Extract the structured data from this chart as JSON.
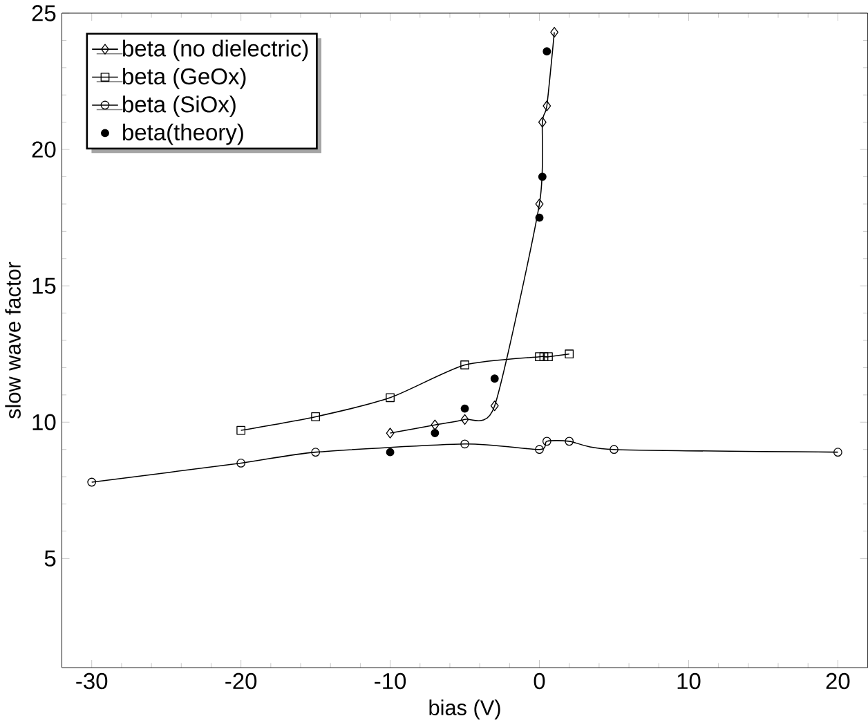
{
  "chart_data": {
    "type": "line",
    "xlabel": "bias (V)",
    "ylabel": "slow wave factor",
    "xlim": [
      -32,
      22
    ],
    "ylim": [
      1,
      25
    ],
    "xticks": [
      -30,
      -20,
      -10,
      0,
      10,
      20
    ],
    "yticks": [
      5,
      10,
      15,
      20,
      25
    ],
    "legend": "top left",
    "grid": false,
    "series": [
      {
        "name": "beta (no dielectric)",
        "color": "#000000",
        "marker": "diamond",
        "x": [
          -10,
          -7,
          -5,
          -3,
          0,
          0.2,
          0.5,
          1
        ],
        "values": [
          9.6,
          9.9,
          10.1,
          10.6,
          18.0,
          21.0,
          21.6,
          24.3
        ]
      },
      {
        "name": "beta (GeOx)",
        "color": "#000000",
        "marker": "square",
        "x": [
          -20,
          -15,
          -10,
          -5,
          0,
          0.3,
          0.6,
          2
        ],
        "values": [
          9.7,
          10.2,
          10.9,
          12.1,
          12.4,
          12.4,
          12.4,
          12.5
        ]
      },
      {
        "name": "beta (SiOx)",
        "color": "#000000",
        "marker": "circle",
        "x": [
          -30,
          -20,
          -15,
          -5,
          0,
          0.5,
          2,
          5,
          20
        ],
        "values": [
          7.8,
          8.5,
          8.9,
          9.2,
          9.0,
          9.3,
          9.3,
          9.0,
          8.9
        ]
      },
      {
        "name": "beta(theory)",
        "type": "scatter",
        "color": "#000000",
        "marker": "filled circle",
        "x": [
          -10,
          -7,
          -5,
          -3,
          0,
          0.2,
          0.5
        ],
        "values": [
          8.9,
          9.6,
          10.5,
          11.6,
          17.5,
          19.0,
          23.6
        ]
      }
    ]
  }
}
